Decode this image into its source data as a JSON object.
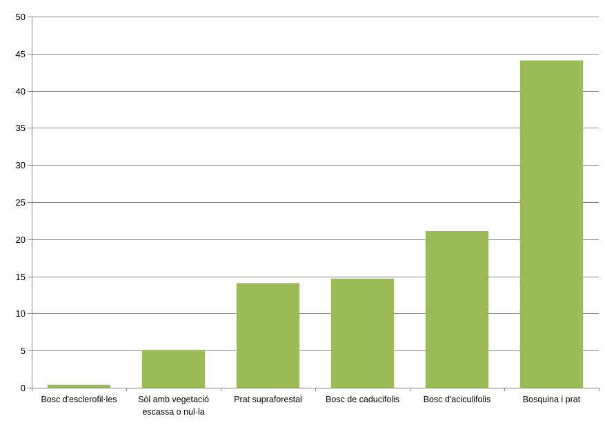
{
  "chart_data": {
    "type": "bar",
    "title": "",
    "xlabel": "",
    "ylabel": "",
    "categories": [
      [
        "Bosc d'esclerofil·les"
      ],
      [
        "Sòl amb vegetació",
        "escassa o nul·la"
      ],
      [
        "Prat supraforestal"
      ],
      [
        "Bosc de caducifolis"
      ],
      [
        "Bosc d'aciculifolis"
      ],
      [
        "Bosquina i prat"
      ]
    ],
    "values": [
      0.4,
      5.1,
      14.1,
      14.7,
      21.1,
      44.1
    ],
    "ylim": [
      0,
      50
    ],
    "yticks": [
      0,
      5,
      10,
      15,
      20,
      25,
      30,
      35,
      40,
      45,
      50
    ],
    "grid": true,
    "legend": "none",
    "colors": {
      "bar": "#9bbb59",
      "grid": "#868686",
      "axis": "#868686"
    }
  }
}
